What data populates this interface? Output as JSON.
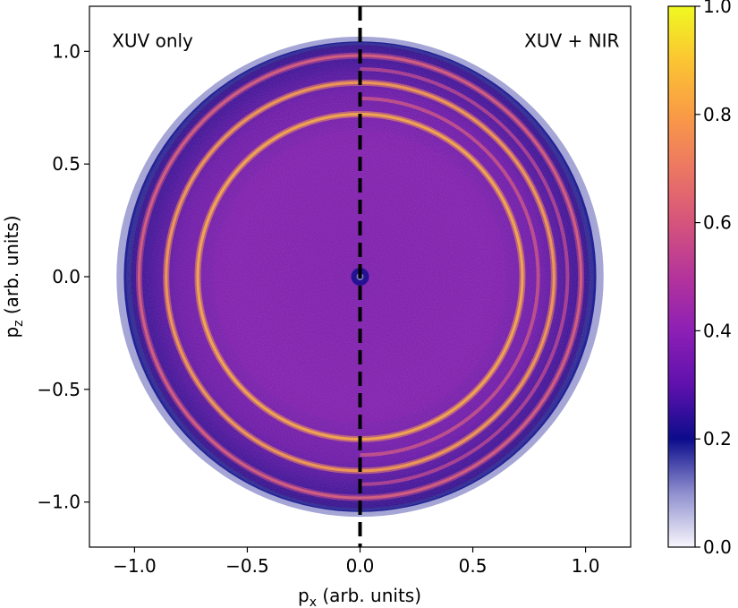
{
  "chart_data": {
    "type": "heatmap",
    "title": "",
    "xlabel": {
      "base": "p",
      "sub": "x",
      "rest": " (arb. units)"
    },
    "ylabel": {
      "base": "p",
      "sub": "z",
      "rest": " (arb. units)"
    },
    "xlim": [
      -1.2,
      1.2
    ],
    "ylim": [
      -1.2,
      1.2
    ],
    "xticks": [
      {
        "value": -1.0,
        "label": "−1.0"
      },
      {
        "value": -0.5,
        "label": "−0.5"
      },
      {
        "value": 0.0,
        "label": "0.0"
      },
      {
        "value": 0.5,
        "label": "0.5"
      },
      {
        "value": 1.0,
        "label": "1.0"
      }
    ],
    "yticks": [
      {
        "value": -1.0,
        "label": "−1.0"
      },
      {
        "value": -0.5,
        "label": "−0.5"
      },
      {
        "value": 0.0,
        "label": "0.0"
      },
      {
        "value": 0.5,
        "label": "0.5"
      },
      {
        "value": 1.0,
        "label": "1.0"
      }
    ],
    "annotations": [
      {
        "text": "XUV only",
        "x": -1.1,
        "y": 1.02,
        "anchor": "start"
      },
      {
        "text": "XUV + NIR",
        "x": 1.15,
        "y": 1.02,
        "anchor": "end"
      }
    ],
    "divider": {
      "x": 0.0,
      "style": "dashed",
      "color": "#000000"
    },
    "colorbar": {
      "range": [
        0.0,
        1.0
      ],
      "colormap": "plasma-with-white-low",
      "ticks": [
        {
          "value": 0.0,
          "label": "0.0"
        },
        {
          "value": 0.2,
          "label": "0.2"
        },
        {
          "value": 0.4,
          "label": "0.4"
        },
        {
          "value": 0.6,
          "label": "0.6"
        },
        {
          "value": 0.8,
          "label": "0.8"
        },
        {
          "value": 1.0,
          "label": "1.0"
        }
      ],
      "stops": [
        {
          "value": 0.0,
          "color": "#f8f6fc"
        },
        {
          "value": 0.1,
          "color": "#8f8fcf"
        },
        {
          "value": 0.2,
          "color": "#0c0c8c"
        },
        {
          "value": 0.3,
          "color": "#5f11ad"
        },
        {
          "value": 0.4,
          "color": "#8d1fb5"
        },
        {
          "value": 0.5,
          "color": "#b4349b"
        },
        {
          "value": 0.6,
          "color": "#d5547c"
        },
        {
          "value": 0.7,
          "color": "#ec7762"
        },
        {
          "value": 0.8,
          "color": "#f99b46"
        },
        {
          "value": 0.9,
          "color": "#fbc532"
        },
        {
          "value": 1.0,
          "color": "#f0f921"
        }
      ]
    },
    "distribution": {
      "description_values": "momentum distribution, normalized intensity",
      "outer_edge_radius": 1.08,
      "rings": [
        {
          "radius": 0.72,
          "intensity": 0.78
        },
        {
          "radius": 0.86,
          "intensity": 0.74
        },
        {
          "radius": 0.98,
          "intensity": 0.55
        }
      ],
      "sideband_rings_right": [
        {
          "radius": 0.79,
          "intensity": 0.6
        },
        {
          "radius": 0.92,
          "intensity": 0.55
        }
      ],
      "background_intensity": 0.36
    }
  }
}
